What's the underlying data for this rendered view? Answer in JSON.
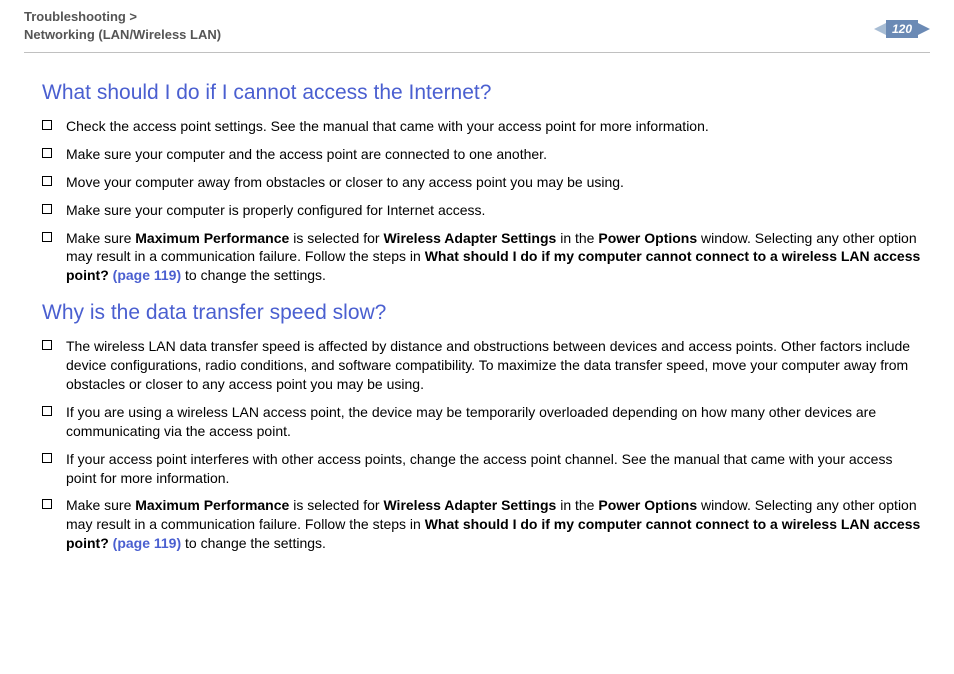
{
  "header": {
    "breadcrumb_line1": "Troubleshooting >",
    "breadcrumb_line2": "Networking (LAN/Wireless LAN)",
    "page_number": "120"
  },
  "colors": {
    "title_color": "#4a5fd0",
    "link_color": "#4a5fd0",
    "breadcrumb_color": "#555555",
    "page_badge_bg": "#6b8ab5",
    "page_badge_arrow_left": "#a8bdd4",
    "hr_color": "#c0c0c0"
  },
  "typography": {
    "title_fontsize": 21,
    "body_fontsize": 14,
    "breadcrumb_fontsize": 13
  },
  "section1": {
    "title": "What should I do if I cannot access the Internet?",
    "items": [
      {
        "text": "Check the access point settings. See the manual that came with your access point for more information."
      },
      {
        "text": "Make sure your computer and the access point are connected to one another."
      },
      {
        "text": "Move your computer away from obstacles or closer to any access point you may be using."
      },
      {
        "text": "Make sure your computer is properly configured for Internet access."
      },
      {
        "pre": "Make sure ",
        "b1": "Maximum Performance",
        "mid1": " is selected for ",
        "b2": "Wireless Adapter Settings",
        "mid2": " in the ",
        "b3": "Power Options",
        "mid3": " window. Selecting any other option may result in a communication failure. Follow the steps in ",
        "b4": "What should I do if my computer cannot connect to a wireless LAN access point? ",
        "link": "(page 119)",
        "post": " to change the settings."
      }
    ]
  },
  "section2": {
    "title": "Why is the data transfer speed slow?",
    "items": [
      {
        "text": "The wireless LAN data transfer speed is affected by distance and obstructions between devices and access points. Other factors include device configurations, radio conditions, and software compatibility. To maximize the data transfer speed, move your computer away from obstacles or closer to any access point you may be using."
      },
      {
        "text": "If you are using a wireless LAN access point, the device may be temporarily overloaded depending on how many other devices are communicating via the access point."
      },
      {
        "text": "If your access point interferes with other access points, change the access point channel. See the manual that came with your access point for more information."
      },
      {
        "pre": "Make sure ",
        "b1": "Maximum Performance",
        "mid1": " is selected for ",
        "b2": "Wireless Adapter Settings",
        "mid2": " in the ",
        "b3": "Power Options",
        "mid3": " window. Selecting any other option may result in a communication failure. Follow the steps in ",
        "b4": "What should I do if my computer cannot connect to a wireless LAN access point? ",
        "link": "(page 119)",
        "post": " to change the settings."
      }
    ]
  }
}
